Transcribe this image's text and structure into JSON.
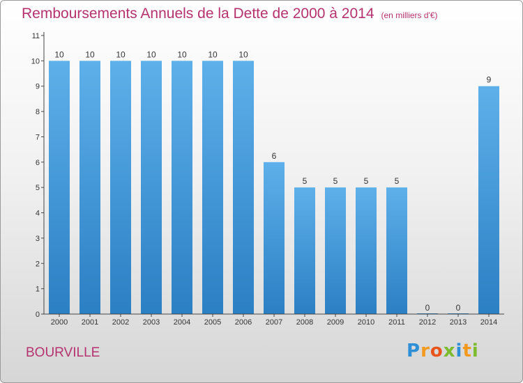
{
  "header": {
    "title": "Remboursements Annuels de la Dette de 2000 à 2014",
    "unit": "(en milliers d'€)"
  },
  "commune": "BOURVILLE",
  "logo": {
    "text": "Proxiti",
    "letters": [
      {
        "ch": "P",
        "color": "#2e8fd6"
      },
      {
        "ch": "r",
        "color": "#f39a1e"
      },
      {
        "ch": "o",
        "color": "#e8541c"
      },
      {
        "ch": "x",
        "color": "#7cbb2d"
      },
      {
        "ch": "i",
        "color": "#2e8fd6"
      },
      {
        "ch": "t",
        "color": "#f39a1e"
      },
      {
        "ch": "i",
        "color": "#7cbb2d"
      }
    ]
  },
  "colors": {
    "title": "#b5326e",
    "bar_top": "#5eb0ea",
    "bar_bottom": "#2b7fc3",
    "axis": "#444444",
    "label": "#333333"
  },
  "chart_data": {
    "type": "bar",
    "title": "Remboursements Annuels de la Dette de 2000 à 2014",
    "unit": "(en milliers d'€)",
    "categories": [
      "2000",
      "2001",
      "2002",
      "2003",
      "2004",
      "2005",
      "2006",
      "2007",
      "2008",
      "2009",
      "2010",
      "2011",
      "2012",
      "2013",
      "2014"
    ],
    "values": [
      10,
      10,
      10,
      10,
      10,
      10,
      10,
      6,
      5,
      5,
      5,
      5,
      0,
      0,
      9
    ],
    "ylim": [
      0,
      11
    ],
    "yticks": [
      0,
      1,
      2,
      3,
      4,
      5,
      6,
      7,
      8,
      9,
      10,
      11
    ],
    "grid": false,
    "legend": "none"
  }
}
